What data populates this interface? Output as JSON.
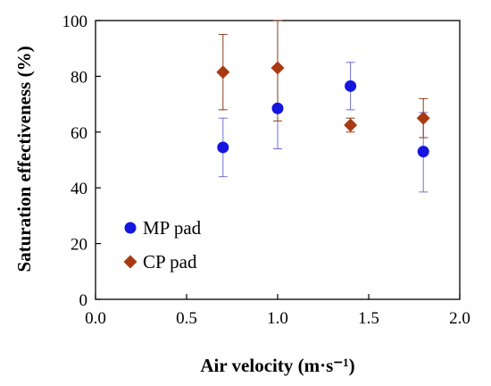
{
  "chart_data": {
    "type": "scatter",
    "title": "",
    "xlabel": "Air velocity (m·s⁻¹)",
    "ylabel": "Saturation effectiveness (%)",
    "xlim": [
      0.0,
      2.0
    ],
    "ylim": [
      0,
      100
    ],
    "x_ticks": [
      "0.0",
      "0.5",
      "1.0",
      "1.5",
      "2.0"
    ],
    "y_ticks": [
      "0",
      "20",
      "40",
      "60",
      "80",
      "100"
    ],
    "grid": false,
    "legend_position": "bottom-left",
    "series": [
      {
        "name": "MP pad",
        "marker": "circle",
        "color": "#1515e0",
        "error_color": "#6e6ed8",
        "points": [
          {
            "x": 0.7,
            "y": 54.5,
            "err_low": 44,
            "err_high": 65
          },
          {
            "x": 1.0,
            "y": 68.5,
            "err_low": 54,
            "err_high": 83
          },
          {
            "x": 1.4,
            "y": 76.5,
            "err_low": 68,
            "err_high": 85
          },
          {
            "x": 1.8,
            "y": 53,
            "err_low": 38.5,
            "err_high": 67
          }
        ]
      },
      {
        "name": "CP pad",
        "marker": "diamond",
        "color": "#a83a12",
        "error_color": "#8a3a18",
        "points": [
          {
            "x": 0.7,
            "y": 81.5,
            "err_low": 68,
            "err_high": 95
          },
          {
            "x": 1.0,
            "y": 83,
            "err_low": 64,
            "err_high": 100
          },
          {
            "x": 1.4,
            "y": 62.5,
            "err_low": 60,
            "err_high": 65
          },
          {
            "x": 1.8,
            "y": 65,
            "err_low": 58,
            "err_high": 72
          }
        ]
      }
    ]
  }
}
